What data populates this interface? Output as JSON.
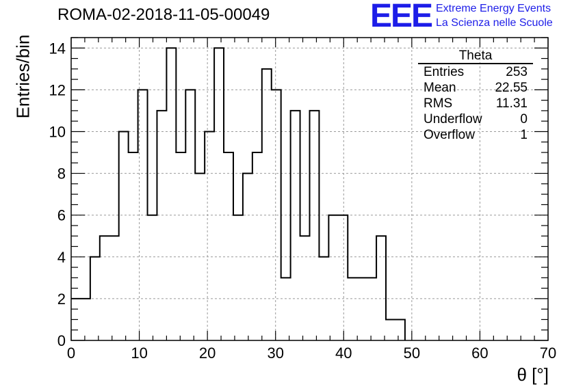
{
  "title": "ROMA-02-2018-11-05-00049",
  "logo": {
    "text": "EEE",
    "line1": "Extreme Energy Events",
    "line2": "La Scienza nelle Scuole",
    "color": "#1d1de8"
  },
  "stats": {
    "title": "Theta",
    "rows": [
      {
        "label": "Entries",
        "value": "253"
      },
      {
        "label": "Mean",
        "value": "22.55"
      },
      {
        "label": "RMS",
        "value": "11.31"
      },
      {
        "label": "Underflow",
        "value": "0"
      },
      {
        "label": "Overflow",
        "value": "1"
      }
    ]
  },
  "chart_data": {
    "type": "histogram",
    "title": "ROMA-02-2018-11-05-00049",
    "xlabel": "θ [°]",
    "ylabel": "Entries/bin",
    "xlim": [
      0,
      70
    ],
    "ylim": [
      0,
      14.5
    ],
    "xticks": [
      0,
      10,
      20,
      30,
      40,
      50,
      60,
      70
    ],
    "yticks": [
      0,
      2,
      4,
      6,
      8,
      10,
      12,
      14
    ],
    "grid": true,
    "bin_width": 1.4,
    "bin_edges_start": 0,
    "values": [
      2,
      2,
      4,
      5,
      5,
      10,
      9,
      12,
      6,
      11,
      14,
      9,
      12,
      8,
      10,
      14,
      9,
      6,
      8,
      9,
      13,
      12,
      3,
      11,
      5,
      11,
      4,
      6,
      6,
      3,
      3,
      3,
      5,
      1,
      1,
      0,
      0,
      0,
      0,
      0,
      0,
      0,
      0,
      0,
      0,
      0,
      0,
      0,
      0,
      0
    ],
    "line_color": "#000000"
  }
}
